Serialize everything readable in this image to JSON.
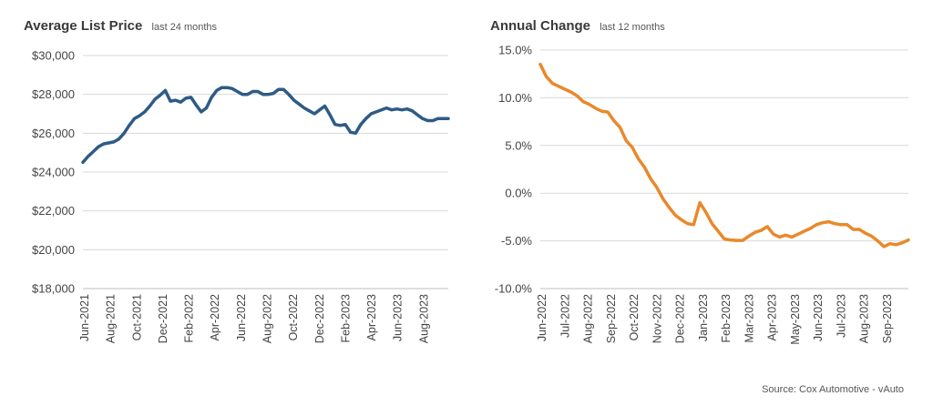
{
  "chart_data": [
    {
      "type": "line",
      "title": "Average List Price",
      "subtitle": "last 24 months",
      "color": "#2e5b86",
      "ylim": [
        18000,
        30000
      ],
      "yticks": [
        18000,
        20000,
        22000,
        24000,
        26000,
        28000,
        30000
      ],
      "ytick_labels": [
        "$18,000",
        "$20,000",
        "$22,000",
        "$24,000",
        "$26,000",
        "$28,000",
        "$30,000"
      ],
      "xtick_labels": [
        "Jun-2021",
        "Aug-2021",
        "Oct-2021",
        "Dec-2021",
        "Feb-2022",
        "Apr-2022",
        "Jun-2022",
        "Aug-2022",
        "Oct-2022",
        "Dec-2022",
        "Feb-2023",
        "Apr-2023",
        "Jun-2023",
        "Aug-2023"
      ],
      "series": [
        {
          "values": [
            24500,
            24800,
            25050,
            25300,
            25450,
            25500,
            25550,
            25700,
            26000,
            26400,
            26750,
            26900,
            27100,
            27400,
            27750,
            27950,
            28200,
            27650,
            27700,
            27600,
            27800,
            27850,
            27450,
            27100,
            27300,
            27850,
            28200,
            28350,
            28350,
            28300,
            28150,
            28000,
            28000,
            28150,
            28150,
            28000,
            28000,
            28050,
            28250,
            28250,
            28000,
            27700,
            27500,
            27300,
            27150,
            27000,
            27200,
            27400,
            26950,
            26450,
            26400,
            26450,
            26050,
            26000,
            26450,
            26750,
            27000,
            27100,
            27200,
            27300,
            27200,
            27250,
            27200,
            27250,
            27150,
            26950,
            26750,
            26650,
            26650,
            26750,
            26750,
            26750
          ]
        }
      ]
    },
    {
      "type": "line",
      "title": "Annual Change",
      "subtitle": "last 12 months",
      "color": "#e8892b",
      "ylim": [
        -10,
        15
      ],
      "yticks": [
        -10,
        -5,
        0,
        5,
        10,
        15
      ],
      "ytick_labels": [
        "-10.0%",
        "-5.0%",
        "0.0%",
        "5.0%",
        "10.0%",
        "15.0%"
      ],
      "xtick_labels": [
        "Jun-2022",
        "Jul-2022",
        "Aug-2022",
        "Sep-2022",
        "Oct-2022",
        "Nov-2022",
        "Dec-2022",
        "Jan-2023",
        "Feb-2023",
        "Mar-2023",
        "Apr-2023",
        "May-2023",
        "Jun-2023",
        "Jul-2023",
        "Aug-2023",
        "Sep-2023"
      ],
      "series": [
        {
          "values": [
            13.5,
            12.2,
            11.5,
            11.2,
            10.9,
            10.6,
            10.2,
            9.6,
            9.3,
            8.9,
            8.6,
            8.5,
            7.6,
            6.9,
            5.5,
            4.8,
            3.6,
            2.7,
            1.5,
            0.6,
            -0.6,
            -1.5,
            -2.3,
            -2.8,
            -3.2,
            -3.3,
            -1.0,
            -2.0,
            -3.2,
            -4.0,
            -4.8,
            -4.9,
            -4.95,
            -4.95,
            -4.5,
            -4.1,
            -3.9,
            -3.5,
            -4.3,
            -4.6,
            -4.4,
            -4.6,
            -4.3,
            -4.0,
            -3.7,
            -3.3,
            -3.1,
            -3.0,
            -3.2,
            -3.3,
            -3.3,
            -3.8,
            -3.8,
            -4.2,
            -4.5,
            -5.0,
            -5.6,
            -5.3,
            -5.4,
            -5.2,
            -4.9
          ]
        }
      ]
    }
  ],
  "source": "Source: Cox Automotive - vAuto"
}
